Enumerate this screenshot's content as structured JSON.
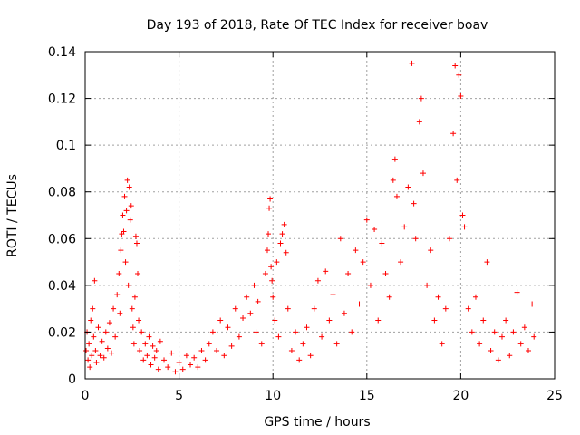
{
  "chart_data": {
    "type": "scatter",
    "title": "Day 193 of 2018, Rate Of TEC Index for receiver boav",
    "xlabel": "GPS time / hours",
    "ylabel": "ROTI / TECUs",
    "xlim": [
      0,
      25
    ],
    "ylim": [
      0,
      0.14
    ],
    "x_ticks": [
      "0",
      "5",
      "10",
      "15",
      "20",
      "25"
    ],
    "y_ticks": [
      "0",
      "0.02",
      "0.04",
      "0.06",
      "0.08",
      "0.1",
      "0.12",
      "0.14"
    ],
    "grid": true,
    "marker": "+",
    "color": "#ff0000",
    "series": [
      {
        "points": [
          [
            0.05,
            0.012
          ],
          [
            0.1,
            0.02
          ],
          [
            0.15,
            0.008
          ],
          [
            0.2,
            0.015
          ],
          [
            0.25,
            0.005
          ],
          [
            0.3,
            0.025
          ],
          [
            0.35,
            0.01
          ],
          [
            0.4,
            0.03
          ],
          [
            0.45,
            0.018
          ],
          [
            0.5,
            0.042
          ],
          [
            0.55,
            0.012
          ],
          [
            0.6,
            0.007
          ],
          [
            0.7,
            0.022
          ],
          [
            0.8,
            0.01
          ],
          [
            0.9,
            0.016
          ],
          [
            1.0,
            0.009
          ],
          [
            1.1,
            0.02
          ],
          [
            1.2,
            0.013
          ],
          [
            1.3,
            0.024
          ],
          [
            1.4,
            0.011
          ],
          [
            1.5,
            0.03
          ],
          [
            1.6,
            0.018
          ],
          [
            1.7,
            0.036
          ],
          [
            1.8,
            0.045
          ],
          [
            1.85,
            0.028
          ],
          [
            1.9,
            0.055
          ],
          [
            1.95,
            0.062
          ],
          [
            2.0,
            0.07
          ],
          [
            2.05,
            0.063
          ],
          [
            2.1,
            0.078
          ],
          [
            2.15,
            0.05
          ],
          [
            2.2,
            0.072
          ],
          [
            2.25,
            0.085
          ],
          [
            2.3,
            0.04
          ],
          [
            2.35,
            0.082
          ],
          [
            2.4,
            0.068
          ],
          [
            2.45,
            0.074
          ],
          [
            2.5,
            0.03
          ],
          [
            2.55,
            0.022
          ],
          [
            2.6,
            0.015
          ],
          [
            2.65,
            0.035
          ],
          [
            2.7,
            0.061
          ],
          [
            2.75,
            0.058
          ],
          [
            2.8,
            0.045
          ],
          [
            2.85,
            0.025
          ],
          [
            2.9,
            0.012
          ],
          [
            3.0,
            0.02
          ],
          [
            3.1,
            0.008
          ],
          [
            3.2,
            0.015
          ],
          [
            3.3,
            0.01
          ],
          [
            3.4,
            0.018
          ],
          [
            3.5,
            0.006
          ],
          [
            3.6,
            0.014
          ],
          [
            3.7,
            0.009
          ],
          [
            3.8,
            0.012
          ],
          [
            3.9,
            0.004
          ],
          [
            4.0,
            0.016
          ],
          [
            4.2,
            0.008
          ],
          [
            4.4,
            0.005
          ],
          [
            4.6,
            0.011
          ],
          [
            4.8,
            0.003
          ],
          [
            5.0,
            0.007
          ],
          [
            5.2,
            0.004
          ],
          [
            5.4,
            0.01
          ],
          [
            5.6,
            0.006
          ],
          [
            5.8,
            0.009
          ],
          [
            6.0,
            0.005
          ],
          [
            6.2,
            0.012
          ],
          [
            6.4,
            0.008
          ],
          [
            6.6,
            0.015
          ],
          [
            6.8,
            0.02
          ],
          [
            7.0,
            0.012
          ],
          [
            7.2,
            0.025
          ],
          [
            7.4,
            0.01
          ],
          [
            7.6,
            0.022
          ],
          [
            7.8,
            0.014
          ],
          [
            8.0,
            0.03
          ],
          [
            8.2,
            0.018
          ],
          [
            8.4,
            0.026
          ],
          [
            8.6,
            0.035
          ],
          [
            8.8,
            0.028
          ],
          [
            9.0,
            0.04
          ],
          [
            9.1,
            0.02
          ],
          [
            9.2,
            0.033
          ],
          [
            9.4,
            0.015
          ],
          [
            9.6,
            0.045
          ],
          [
            9.7,
            0.055
          ],
          [
            9.75,
            0.062
          ],
          [
            9.8,
            0.073
          ],
          [
            9.85,
            0.077
          ],
          [
            9.9,
            0.048
          ],
          [
            9.95,
            0.042
          ],
          [
            10.0,
            0.035
          ],
          [
            10.1,
            0.025
          ],
          [
            10.2,
            0.05
          ],
          [
            10.3,
            0.018
          ],
          [
            10.4,
            0.058
          ],
          [
            10.5,
            0.062
          ],
          [
            10.6,
            0.066
          ],
          [
            10.7,
            0.054
          ],
          [
            10.8,
            0.03
          ],
          [
            11.0,
            0.012
          ],
          [
            11.2,
            0.02
          ],
          [
            11.4,
            0.008
          ],
          [
            11.6,
            0.015
          ],
          [
            11.8,
            0.022
          ],
          [
            12.0,
            0.01
          ],
          [
            12.2,
            0.03
          ],
          [
            12.4,
            0.042
          ],
          [
            12.6,
            0.018
          ],
          [
            12.8,
            0.046
          ],
          [
            13.0,
            0.025
          ],
          [
            13.2,
            0.036
          ],
          [
            13.4,
            0.015
          ],
          [
            13.6,
            0.06
          ],
          [
            13.8,
            0.028
          ],
          [
            14.0,
            0.045
          ],
          [
            14.2,
            0.02
          ],
          [
            14.4,
            0.055
          ],
          [
            14.6,
            0.032
          ],
          [
            14.8,
            0.05
          ],
          [
            15.0,
            0.068
          ],
          [
            15.2,
            0.04
          ],
          [
            15.4,
            0.064
          ],
          [
            15.6,
            0.025
          ],
          [
            15.8,
            0.058
          ],
          [
            16.0,
            0.045
          ],
          [
            16.2,
            0.035
          ],
          [
            16.4,
            0.085
          ],
          [
            16.5,
            0.094
          ],
          [
            16.6,
            0.078
          ],
          [
            16.8,
            0.05
          ],
          [
            17.0,
            0.065
          ],
          [
            17.2,
            0.082
          ],
          [
            17.4,
            0.135
          ],
          [
            17.5,
            0.075
          ],
          [
            17.6,
            0.06
          ],
          [
            17.8,
            0.11
          ],
          [
            17.9,
            0.12
          ],
          [
            18.0,
            0.088
          ],
          [
            18.2,
            0.04
          ],
          [
            18.4,
            0.055
          ],
          [
            18.6,
            0.025
          ],
          [
            18.8,
            0.035
          ],
          [
            19.0,
            0.015
          ],
          [
            19.2,
            0.03
          ],
          [
            19.4,
            0.06
          ],
          [
            19.6,
            0.105
          ],
          [
            19.7,
            0.134
          ],
          [
            19.8,
            0.085
          ],
          [
            19.9,
            0.13
          ],
          [
            20.0,
            0.121
          ],
          [
            20.1,
            0.07
          ],
          [
            20.2,
            0.065
          ],
          [
            20.4,
            0.03
          ],
          [
            20.6,
            0.02
          ],
          [
            20.8,
            0.035
          ],
          [
            21.0,
            0.015
          ],
          [
            21.2,
            0.025
          ],
          [
            21.4,
            0.05
          ],
          [
            21.6,
            0.012
          ],
          [
            21.8,
            0.02
          ],
          [
            22.0,
            0.008
          ],
          [
            22.2,
            0.018
          ],
          [
            22.4,
            0.025
          ],
          [
            22.6,
            0.01
          ],
          [
            22.8,
            0.02
          ],
          [
            23.0,
            0.037
          ],
          [
            23.2,
            0.015
          ],
          [
            23.4,
            0.022
          ],
          [
            23.6,
            0.012
          ],
          [
            23.8,
            0.032
          ],
          [
            23.9,
            0.018
          ]
        ]
      }
    ]
  }
}
